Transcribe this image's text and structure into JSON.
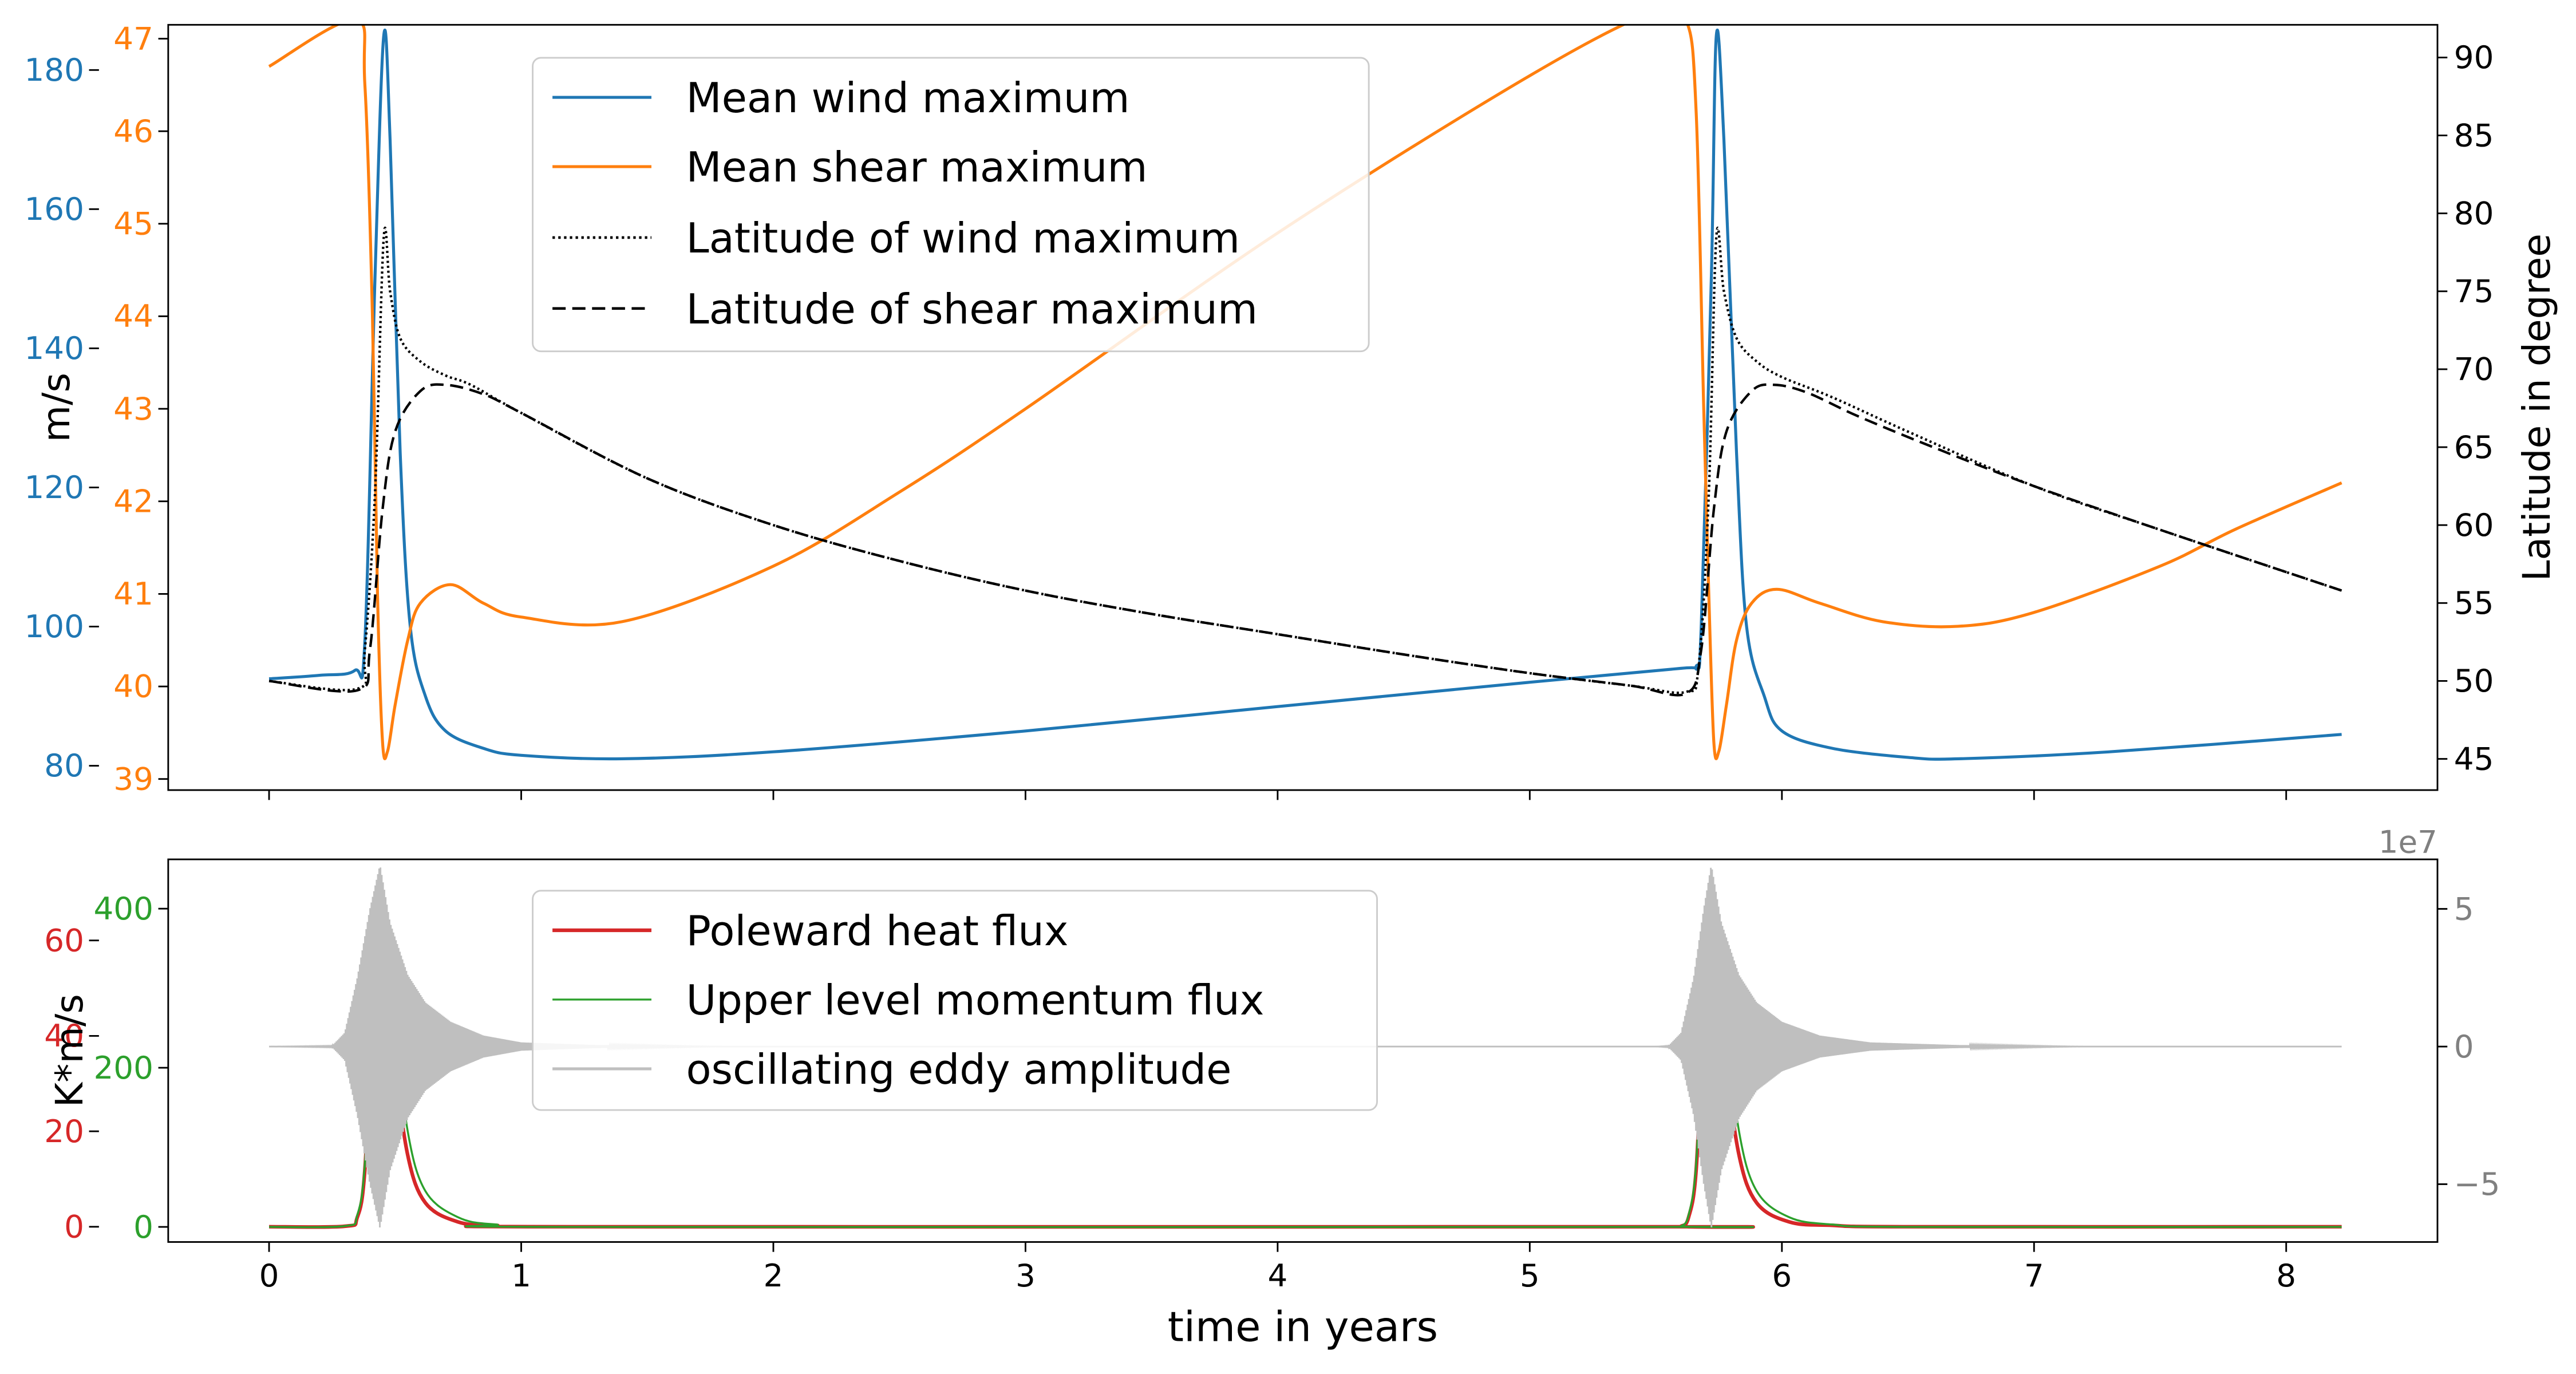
{
  "colors": {
    "blue": "#1f77b4",
    "orange": "#ff7f0e",
    "black": "#000000",
    "red": "#d62728",
    "green": "#2ca02c",
    "gray": "#bfbfbf",
    "gray_text": "#808080"
  },
  "chart_data": [
    {
      "type": "line",
      "panel": "top",
      "title": "",
      "xlabel": "",
      "x_range": [
        -0.4,
        8.6
      ],
      "x_ticks": [
        0,
        1,
        2,
        3,
        4,
        5,
        6,
        7,
        8
      ],
      "axes": {
        "left_outer": {
          "label": "m/s",
          "range": [
            76.5,
            186.5
          ],
          "ticks": [
            "80",
            "100",
            "120",
            "140",
            "160",
            "180"
          ],
          "color": "#1f77b4"
        },
        "left_inner": {
          "label": "",
          "range": [
            38.88,
            47.15
          ],
          "ticks": [
            "39",
            "40",
            "41",
            "42",
            "43",
            "44",
            "45",
            "46",
            "47"
          ],
          "color": "#ff7f0e"
        },
        "right": {
          "label": "Latitude in degree",
          "range": [
            43.0,
            92.1
          ],
          "ticks": [
            "45",
            "50",
            "55",
            "60",
            "65",
            "70",
            "75",
            "80",
            "85",
            "90"
          ],
          "color": "#000000"
        }
      },
      "legend": {
        "position": "top-center",
        "entries": [
          "Mean wind maximum",
          "Mean shear maximum",
          "Latitude of wind maximum",
          "Latitude of shear maximum"
        ]
      },
      "series": [
        {
          "name": "Mean wind maximum",
          "axis": "left_outer",
          "color": "#1f77b4",
          "style": "solid",
          "points": [
            [
              0,
              92.5
            ],
            [
              0.2,
              93
            ],
            [
              0.34,
              93.7
            ],
            [
              0.38,
              98
            ],
            [
              0.42,
              150
            ],
            [
              0.455,
              185
            ],
            [
              0.48,
              170
            ],
            [
              0.52,
              125
            ],
            [
              0.56,
              100
            ],
            [
              0.62,
              90
            ],
            [
              0.7,
              85
            ],
            [
              0.85,
              82.5
            ],
            [
              1.0,
              81.5
            ],
            [
              1.4,
              81
            ],
            [
              2.0,
              82
            ],
            [
              3.0,
              85
            ],
            [
              4.0,
              88.5
            ],
            [
              5.0,
              92
            ],
            [
              5.6,
              94
            ],
            [
              5.66,
              94.3
            ],
            [
              5.68,
              100
            ],
            [
              5.72,
              150
            ],
            [
              5.74,
              185
            ],
            [
              5.77,
              170
            ],
            [
              5.82,
              125
            ],
            [
              5.86,
              100
            ],
            [
              5.93,
              90
            ],
            [
              6.0,
              85
            ],
            [
              6.2,
              82.5
            ],
            [
              6.5,
              81.2
            ],
            [
              6.7,
              81
            ],
            [
              7.3,
              82
            ],
            [
              8.22,
              84.5
            ]
          ]
        },
        {
          "name": "Mean shear maximum",
          "axis": "left_inner",
          "color": "#ff7f0e",
          "style": "solid",
          "points": [
            [
              0,
              46.7
            ],
            [
              0.34,
              47.2
            ],
            [
              0.38,
              46.5
            ],
            [
              0.41,
              44.0
            ],
            [
              0.43,
              41.0
            ],
            [
              0.45,
              39.4
            ],
            [
              0.47,
              39.3
            ],
            [
              0.5,
              39.8
            ],
            [
              0.55,
              40.5
            ],
            [
              0.6,
              40.9
            ],
            [
              0.72,
              41.1
            ],
            [
              0.85,
              40.9
            ],
            [
              1.0,
              40.75
            ],
            [
              1.4,
              40.7
            ],
            [
              2.0,
              41.3
            ],
            [
              2.5,
              42.1
            ],
            [
              3.0,
              43.0
            ],
            [
              4.0,
              44.9
            ],
            [
              5.0,
              46.6
            ],
            [
              5.5,
              47.3
            ],
            [
              5.62,
              47.2
            ],
            [
              5.66,
              46.2
            ],
            [
              5.69,
              43.0
            ],
            [
              5.71,
              41.0
            ],
            [
              5.73,
              39.4
            ],
            [
              5.75,
              39.3
            ],
            [
              5.78,
              39.8
            ],
            [
              5.82,
              40.5
            ],
            [
              5.88,
              40.9
            ],
            [
              5.98,
              41.05
            ],
            [
              6.15,
              40.9
            ],
            [
              6.4,
              40.7
            ],
            [
              6.7,
              40.65
            ],
            [
              7.0,
              40.8
            ],
            [
              7.5,
              41.3
            ],
            [
              7.8,
              41.7
            ],
            [
              8.22,
              42.2
            ]
          ]
        },
        {
          "name": "Latitude of wind maximum",
          "axis": "right",
          "color": "#000000",
          "style": "dotted",
          "points": [
            [
              0,
              50
            ],
            [
              0.35,
              49.5
            ],
            [
              0.38,
              52
            ],
            [
              0.42,
              62
            ],
            [
              0.455,
              78.5
            ],
            [
              0.48,
              75
            ],
            [
              0.52,
              72
            ],
            [
              0.6,
              70.5
            ],
            [
              0.7,
              69.6
            ],
            [
              0.8,
              69.0
            ],
            [
              1.0,
              67.2
            ],
            [
              1.5,
              63.0
            ],
            [
              2.0,
              60.0
            ],
            [
              2.5,
              57.7
            ],
            [
              3.0,
              55.8
            ],
            [
              3.5,
              54.3
            ],
            [
              4.0,
              53.0
            ],
            [
              4.5,
              51.7
            ],
            [
              5.0,
              50.5
            ],
            [
              5.4,
              49.7
            ],
            [
              5.62,
              49.3
            ],
            [
              5.67,
              51
            ],
            [
              5.71,
              62
            ],
            [
              5.74,
              78.5
            ],
            [
              5.77,
              75
            ],
            [
              5.82,
              72
            ],
            [
              5.9,
              70.5
            ],
            [
              6.0,
              69.5
            ],
            [
              6.2,
              68.2
            ],
            [
              6.5,
              66.0
            ],
            [
              7.0,
              62.5
            ],
            [
              7.5,
              59.7
            ],
            [
              8.22,
              55.8
            ]
          ]
        },
        {
          "name": "Latitude of shear maximum",
          "axis": "right",
          "color": "#000000",
          "style": "dashed",
          "points": [
            [
              0,
              50
            ],
            [
              0.35,
              49.4
            ],
            [
              0.4,
              52
            ],
            [
              0.45,
              61
            ],
            [
              0.5,
              66
            ],
            [
              0.6,
              68.6
            ],
            [
              0.7,
              69.0
            ],
            [
              0.85,
              68.4
            ],
            [
              1.0,
              67.2
            ],
            [
              1.5,
              63.0
            ],
            [
              2.0,
              60.0
            ],
            [
              2.5,
              57.7
            ],
            [
              3.0,
              55.8
            ],
            [
              3.5,
              54.3
            ],
            [
              4.0,
              53.0
            ],
            [
              4.5,
              51.7
            ],
            [
              5.0,
              50.5
            ],
            [
              5.4,
              49.7
            ],
            [
              5.62,
              49.2
            ],
            [
              5.68,
              52
            ],
            [
              5.73,
              61
            ],
            [
              5.78,
              66
            ],
            [
              5.88,
              68.6
            ],
            [
              5.97,
              69.0
            ],
            [
              6.1,
              68.5
            ],
            [
              6.3,
              67.0
            ],
            [
              6.6,
              65.0
            ],
            [
              7.0,
              62.5
            ],
            [
              7.5,
              59.7
            ],
            [
              8.22,
              55.8
            ]
          ]
        }
      ]
    },
    {
      "type": "line",
      "panel": "bottom",
      "title": "",
      "xlabel": "time in years",
      "x_range": [
        -0.4,
        8.6
      ],
      "x_ticks": [
        0,
        1,
        2,
        3,
        4,
        5,
        6,
        7,
        8
      ],
      "axes": {
        "left_outer": {
          "label": "K*m/s",
          "range": [
            -3.2,
            77
          ],
          "ticks": [
            "0",
            "20",
            "40",
            "60"
          ],
          "color": "#d62728"
        },
        "left_inner": {
          "label": "",
          "range": [
            -19,
            462
          ],
          "ticks": [
            "0",
            "200",
            "400"
          ],
          "color": "#2ca02c"
        },
        "right": {
          "label": "",
          "range": [
            -7.1,
            6.8
          ],
          "ticks": [
            "−5",
            "0",
            "5"
          ],
          "scale_label": "1e7",
          "color": "#808080"
        }
      },
      "legend": {
        "position": "top-center",
        "entries": [
          "Poleward heat flux",
          "Upper level momentum flux",
          "oscillating eddy amplitude"
        ]
      },
      "series": [
        {
          "name": "Poleward heat flux",
          "axis": "left_outer",
          "color": "#d62728",
          "style": "solid",
          "points": [
            [
              0,
              0
            ],
            [
              0.3,
              0.1
            ],
            [
              0.35,
              2
            ],
            [
              0.38,
              12
            ],
            [
              0.41,
              45
            ],
            [
              0.44,
              70
            ],
            [
              0.47,
              60
            ],
            [
              0.5,
              35
            ],
            [
              0.55,
              15
            ],
            [
              0.62,
              5
            ],
            [
              0.75,
              1
            ],
            [
              0.9,
              0.3
            ],
            [
              1.2,
              0
            ],
            [
              5.55,
              0
            ],
            [
              5.6,
              0.1
            ],
            [
              5.63,
              2
            ],
            [
              5.66,
              12
            ],
            [
              5.69,
              45
            ],
            [
              5.72,
              70
            ],
            [
              5.75,
              60
            ],
            [
              5.78,
              35
            ],
            [
              5.83,
              15
            ],
            [
              5.9,
              5
            ],
            [
              6.03,
              1
            ],
            [
              6.2,
              0.3
            ],
            [
              6.5,
              0
            ],
            [
              8.22,
              0
            ]
          ]
        },
        {
          "name": "Upper level momentum flux",
          "axis": "left_inner",
          "color": "#2ca02c",
          "style": "solid",
          "points": [
            [
              0,
              0
            ],
            [
              0.3,
              1
            ],
            [
              0.35,
              15
            ],
            [
              0.38,
              80
            ],
            [
              0.41,
              280
            ],
            [
              0.44,
              420
            ],
            [
              0.47,
              380
            ],
            [
              0.5,
              260
            ],
            [
              0.55,
              120
            ],
            [
              0.62,
              45
            ],
            [
              0.75,
              12
            ],
            [
              0.9,
              3
            ],
            [
              1.2,
              0
            ],
            [
              5.55,
              0
            ],
            [
              5.6,
              1
            ],
            [
              5.63,
              15
            ],
            [
              5.66,
              80
            ],
            [
              5.69,
              280
            ],
            [
              5.72,
              420
            ],
            [
              5.75,
              380
            ],
            [
              5.78,
              260
            ],
            [
              5.83,
              120
            ],
            [
              5.9,
              45
            ],
            [
              6.03,
              12
            ],
            [
              6.2,
              3
            ],
            [
              6.5,
              0
            ],
            [
              8.22,
              0
            ]
          ]
        },
        {
          "name": "oscillating eddy amplitude",
          "axis": "right",
          "color": "#bfbfbf",
          "style": "solid",
          "envelope": [
            [
              0,
              0
            ],
            [
              0.25,
              0.02
            ],
            [
              0.3,
              0.5
            ],
            [
              0.35,
              2.5
            ],
            [
              0.4,
              5
            ],
            [
              0.44,
              6.6
            ],
            [
              0.48,
              4.5
            ],
            [
              0.55,
              2.6
            ],
            [
              0.62,
              1.6
            ],
            [
              0.72,
              0.9
            ],
            [
              0.85,
              0.4
            ],
            [
              1.0,
              0.15
            ],
            [
              1.3,
              0.05
            ],
            [
              1.8,
              0
            ],
            [
              5.5,
              0
            ],
            [
              5.55,
              0.02
            ],
            [
              5.6,
              0.5
            ],
            [
              5.65,
              2.5
            ],
            [
              5.69,
              5
            ],
            [
              5.72,
              6.6
            ],
            [
              5.76,
              4.5
            ],
            [
              5.83,
              2.6
            ],
            [
              5.9,
              1.6
            ],
            [
              6.0,
              0.9
            ],
            [
              6.15,
              0.4
            ],
            [
              6.35,
              0.15
            ],
            [
              6.7,
              0.05
            ],
            [
              7.2,
              0
            ],
            [
              8.22,
              0
            ]
          ]
        }
      ]
    }
  ]
}
